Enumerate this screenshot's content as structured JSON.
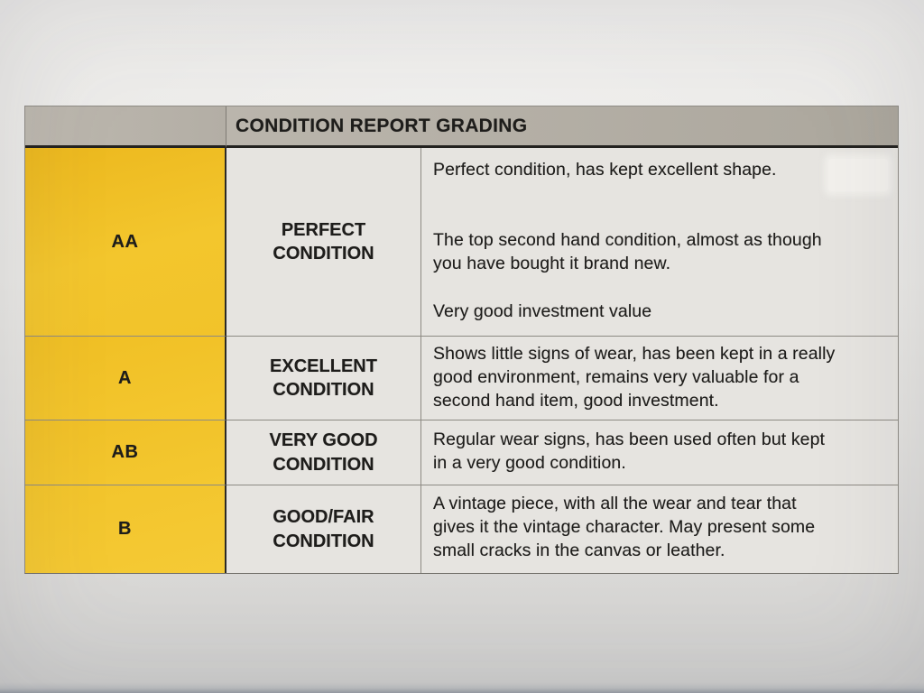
{
  "table": {
    "title": "CONDITION REPORT GRADING",
    "rows": [
      {
        "grade": "AA",
        "label": "PERFECT\nCONDITION",
        "paragraphs": [
          "Perfect condition, has kept excellent shape.",
          "The top second hand condition, almost as though\nyou have bought it brand new.",
          "Very good investment value"
        ]
      },
      {
        "grade": "A",
        "label": "EXCELLENT\nCONDITION",
        "paragraphs": [
          "Shows little signs of wear, has been kept in a really\ngood environment, remains very valuable for a\nsecond hand item, good investment."
        ]
      },
      {
        "grade": "AB",
        "label": "VERY GOOD\nCONDITION",
        "paragraphs": [
          "Regular wear signs, has been used often but kept\nin a very good condition."
        ]
      },
      {
        "grade": "B",
        "label": "GOOD/FAIR\nCONDITION",
        "paragraphs": [
          "A vintage piece, with all the wear and tear that\ngives it the vintage character. May present some\nsmall cracks in the canvas or leather."
        ]
      }
    ]
  },
  "colors": {
    "grade-yellow": "#f2c32b",
    "header-gray": "#b5b0a7",
    "cell-gray": "#e6e4e0",
    "paper": "#e9e8e5",
    "ink": "#1e1d1b"
  }
}
